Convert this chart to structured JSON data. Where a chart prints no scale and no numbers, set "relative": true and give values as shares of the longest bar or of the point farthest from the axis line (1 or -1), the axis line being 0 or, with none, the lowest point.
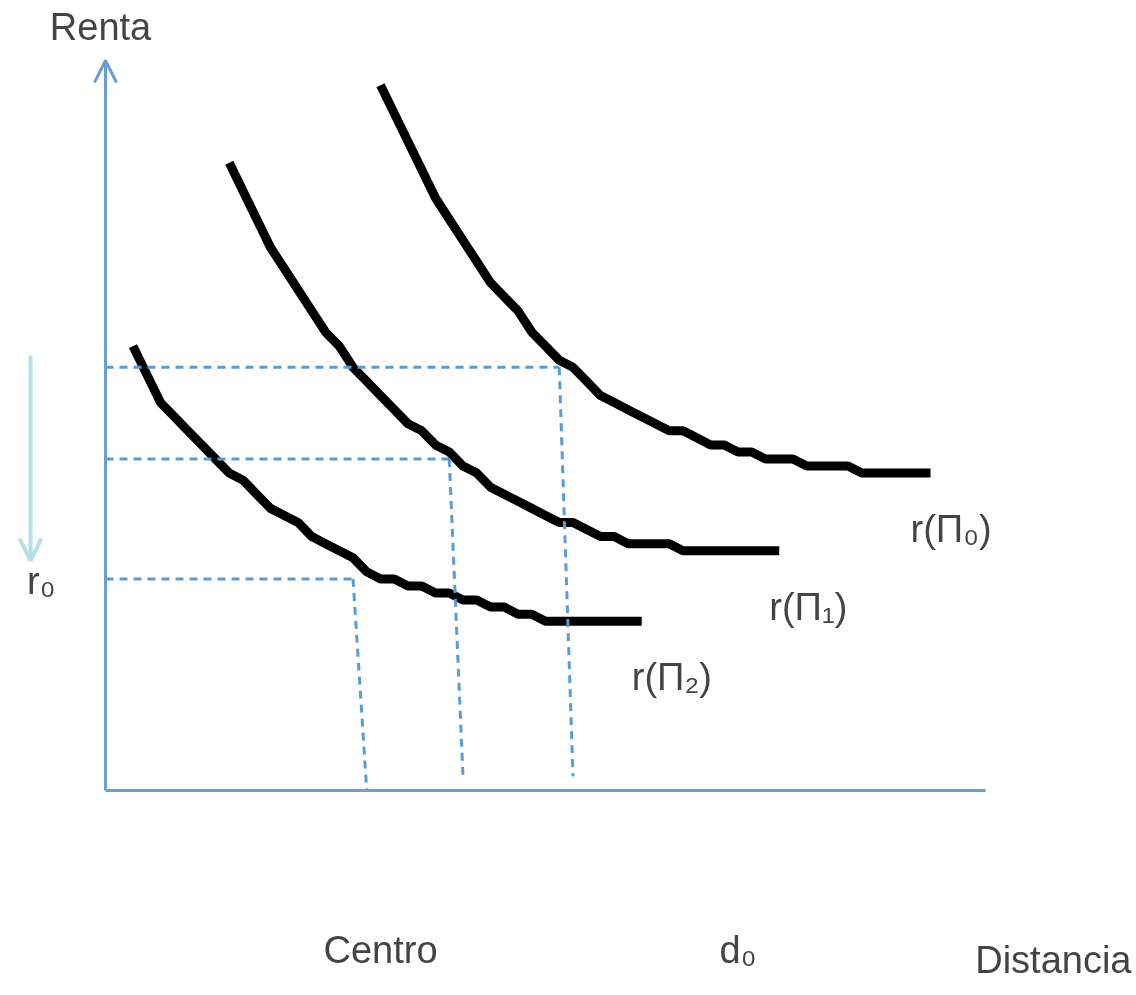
{
  "chart_data": {
    "type": "line",
    "relative": true,
    "ylabel": "Renta",
    "xlabel": "Distancia",
    "categories": [
      null,
      null,
      null,
      null,
      null,
      null,
      null,
      null,
      null,
      null,
      null,
      null,
      null,
      null,
      null,
      null,
      null,
      null,
      null,
      null,
      "Centro",
      null,
      null,
      null,
      null,
      null,
      null,
      null,
      null,
      null,
      null,
      null,
      null,
      null,
      null,
      null,
      null,
      null,
      null,
      null,
      null,
      null,
      null,
      null,
      null,
      null,
      "d₀",
      null,
      null,
      null,
      null,
      null,
      null,
      null,
      null,
      null,
      null,
      null,
      null,
      null,
      null,
      null,
      null,
      null,
      null
    ],
    "tick_labels": "x",
    "marker": "none",
    "annotations": [
      "r₀"
    ],
    "series": [
      {
        "name": "r(Π₀)",
        "color": "#000000",
        "line_style": "solid",
        "values": [
          null,
          null,
          null,
          null,
          null,
          null,
          null,
          null,
          null,
          null,
          null,
          null,
          null,
          null,
          null,
          null,
          null,
          null,
          null,
          null,
          1.0,
          0.96,
          0.92,
          0.88,
          0.84,
          0.81,
          0.78,
          0.75,
          0.72,
          0.7,
          0.68,
          0.65,
          0.63,
          0.61,
          0.6,
          0.58,
          0.56,
          0.55,
          0.54,
          0.53,
          0.52,
          0.51,
          0.51,
          0.5,
          0.49,
          0.49,
          0.48,
          0.48,
          0.47,
          0.47,
          0.47,
          0.46,
          0.46,
          0.46,
          0.46,
          0.45,
          0.45,
          0.45,
          0.45,
          0.45,
          0.45,
          null,
          null,
          null,
          null
        ]
      },
      {
        "name": "r(Π₁)",
        "color": "#000000",
        "line_style": "solid",
        "values": [
          null,
          null,
          null,
          null,
          null,
          null,
          null,
          null,
          null,
          0.89,
          0.85,
          0.81,
          0.77,
          0.74,
          0.71,
          0.68,
          0.65,
          0.63,
          0.6,
          0.58,
          0.56,
          0.54,
          0.52,
          0.51,
          0.49,
          0.48,
          0.46,
          0.45,
          0.43,
          0.42,
          0.41,
          0.4,
          0.39,
          0.38,
          0.38,
          0.37,
          0.36,
          0.36,
          0.35,
          0.35,
          0.35,
          0.35,
          0.34,
          0.34,
          0.34,
          0.34,
          0.34,
          0.34,
          0.34,
          0.34,
          null,
          null,
          null,
          null,
          null,
          null,
          null,
          null,
          null,
          null,
          null,
          null,
          null,
          null,
          null
        ]
      },
      {
        "name": "r(Π₂)",
        "color": "#000000",
        "line_style": "solid",
        "values": [
          null,
          null,
          0.63,
          0.59,
          0.55,
          0.53,
          0.51,
          0.49,
          0.47,
          0.45,
          0.44,
          0.42,
          0.4,
          0.39,
          0.38,
          0.36,
          0.35,
          0.34,
          0.33,
          0.31,
          0.3,
          0.3,
          0.29,
          0.29,
          0.28,
          0.28,
          0.27,
          0.27,
          0.26,
          0.26,
          0.25,
          0.25,
          0.24,
          0.24,
          0.24,
          0.24,
          0.24,
          0.24,
          0.24,
          0.24,
          null,
          null,
          null,
          null,
          null,
          null,
          null,
          null,
          null,
          null,
          null,
          null,
          null,
          null,
          null,
          null,
          null,
          null,
          null,
          null,
          null,
          null,
          null,
          null,
          null
        ]
      },
      {
        "color": "#5b9bd5",
        "line_style": "dashed",
        "values": [
          0.6,
          0.6,
          0.6,
          0.6,
          0.6,
          0.6,
          0.6,
          0.6,
          0.6,
          0.6,
          0.6,
          0.6,
          0.6,
          0.6,
          0.6,
          0.6,
          0.6,
          0.6,
          0.6,
          0.6,
          0.6,
          0.6,
          0.6,
          0.6,
          0.6,
          0.6,
          0.6,
          0.6,
          0.6,
          0.6,
          0.6,
          0.6,
          0.6,
          0.6,
          null,
          null,
          null,
          null,
          null,
          null,
          null,
          null,
          null,
          null,
          null,
          null,
          null,
          null,
          null,
          null,
          null,
          null,
          null,
          null,
          null,
          null,
          null,
          null,
          null,
          null,
          null,
          null,
          null,
          null,
          null
        ]
      },
      {
        "color": "#5b9bd5",
        "line_style": "dashed",
        "values": [
          0.47,
          0.47,
          0.47,
          0.47,
          0.47,
          0.47,
          0.47,
          0.47,
          0.47,
          0.47,
          0.47,
          0.47,
          0.47,
          0.47,
          0.47,
          0.47,
          0.47,
          0.47,
          0.47,
          0.47,
          0.47,
          0.47,
          0.47,
          0.47,
          0.47,
          0.47,
          null,
          null,
          null,
          null,
          null,
          null,
          null,
          null,
          null,
          null,
          null,
          null,
          null,
          null,
          null,
          null,
          null,
          null,
          null,
          null,
          null,
          null,
          null,
          null,
          null,
          null,
          null,
          null,
          null,
          null,
          null,
          null,
          null,
          null,
          null,
          null,
          null,
          null,
          null
        ]
      },
      {
        "color": "#5b9bd5",
        "line_style": "dashed",
        "values": [
          0.3,
          0.3,
          0.3,
          0.3,
          0.3,
          0.3,
          0.3,
          0.3,
          0.3,
          0.3,
          0.3,
          0.3,
          0.3,
          0.3,
          0.3,
          0.3,
          0.3,
          0.3,
          0.3,
          null,
          null,
          null,
          null,
          null,
          null,
          null,
          null,
          null,
          null,
          null,
          null,
          null,
          null,
          null,
          null,
          null,
          null,
          null,
          null,
          null,
          null,
          null,
          null,
          null,
          null,
          null,
          null,
          null,
          null,
          null,
          null,
          null,
          null,
          null,
          null,
          null,
          null,
          null,
          null,
          null,
          null,
          null,
          null,
          null,
          null
        ]
      },
      {
        "color": "#5b9bd5",
        "line_style": "dashed",
        "values": [
          null,
          null,
          null,
          null,
          null,
          null,
          null,
          null,
          null,
          null,
          null,
          null,
          null,
          null,
          null,
          null,
          null,
          null,
          0.3,
          0.0,
          null,
          null,
          null,
          null,
          null,
          null,
          null,
          null,
          null,
          null,
          null,
          null,
          null,
          null,
          null,
          null,
          null,
          null,
          null,
          null,
          null,
          null,
          null,
          null,
          null,
          null,
          null,
          null,
          null,
          null,
          null,
          null,
          null,
          null,
          null,
          null,
          null,
          null,
          null,
          null,
          null,
          null,
          null,
          null,
          null
        ]
      },
      {
        "color": "#5b9bd5",
        "line_style": "dashed",
        "values": [
          null,
          null,
          null,
          null,
          null,
          null,
          null,
          null,
          null,
          null,
          null,
          null,
          null,
          null,
          null,
          null,
          null,
          null,
          null,
          null,
          null,
          null,
          null,
          null,
          null,
          0.47,
          0.02,
          null,
          null,
          null,
          null,
          null,
          null,
          null,
          null,
          null,
          null,
          null,
          null,
          null,
          null,
          null,
          null,
          null,
          null,
          null,
          null,
          null,
          null,
          null,
          null,
          null,
          null,
          null,
          null,
          null,
          null,
          null,
          null,
          null,
          null,
          null,
          null,
          null,
          null
        ]
      },
      {
        "color": "#5b9bd5",
        "line_style": "dashed",
        "values": [
          null,
          null,
          null,
          null,
          null,
          null,
          null,
          null,
          null,
          null,
          null,
          null,
          null,
          null,
          null,
          null,
          null,
          null,
          null,
          null,
          null,
          null,
          null,
          null,
          null,
          null,
          null,
          null,
          null,
          null,
          null,
          null,
          null,
          0.6,
          0.02,
          null,
          null,
          null,
          null,
          null,
          null,
          null,
          null,
          null,
          null,
          null,
          null,
          null,
          null,
          null,
          null,
          null,
          null,
          null,
          null,
          null,
          null,
          null,
          null,
          null,
          null,
          null,
          null,
          null,
          null
        ]
      }
    ]
  }
}
